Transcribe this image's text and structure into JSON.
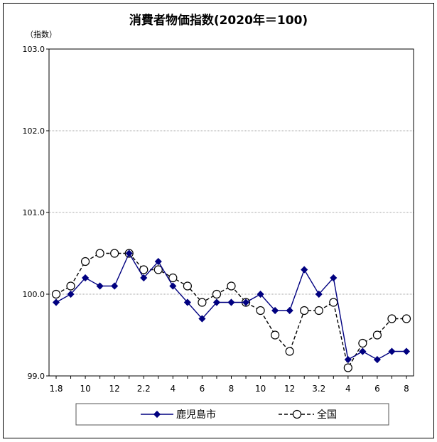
{
  "chart_data": {
    "type": "line",
    "title": "消費者物価指数(2020年＝100)",
    "ylabel": "（指数）",
    "xlabel": "",
    "ylim": [
      99.0,
      103.0
    ],
    "yticks": [
      "99.0",
      "100.0",
      "101.0",
      "102.0",
      "103.0"
    ],
    "grid": true,
    "legend_position": "bottom",
    "x_tick_labels": [
      "1.8",
      "",
      "10",
      "",
      "12",
      "",
      "2.2",
      "",
      "4",
      "",
      "6",
      "",
      "8",
      "",
      "10",
      "",
      "12",
      "",
      "3.2",
      "",
      "4",
      "",
      "6",
      "",
      "8"
    ],
    "series": [
      {
        "name": "鹿児島市",
        "color": "#000080",
        "marker": "diamond",
        "line": "solid",
        "values": [
          99.9,
          100.0,
          100.2,
          100.1,
          100.1,
          100.5,
          100.2,
          100.4,
          100.1,
          99.9,
          99.7,
          99.9,
          99.9,
          99.9,
          100.0,
          99.8,
          99.8,
          100.3,
          100.0,
          100.2,
          99.2,
          99.3,
          99.2,
          99.3,
          99.3
        ]
      },
      {
        "name": "全国",
        "color": "#000000",
        "marker": "circle-open",
        "line": "dashed",
        "values": [
          100.0,
          100.1,
          100.4,
          100.5,
          100.5,
          100.5,
          100.3,
          100.3,
          100.2,
          100.1,
          99.9,
          100.0,
          100.1,
          99.9,
          99.8,
          99.5,
          99.3,
          99.8,
          99.8,
          99.9,
          99.1,
          99.4,
          99.5,
          99.7,
          99.7
        ]
      }
    ]
  }
}
